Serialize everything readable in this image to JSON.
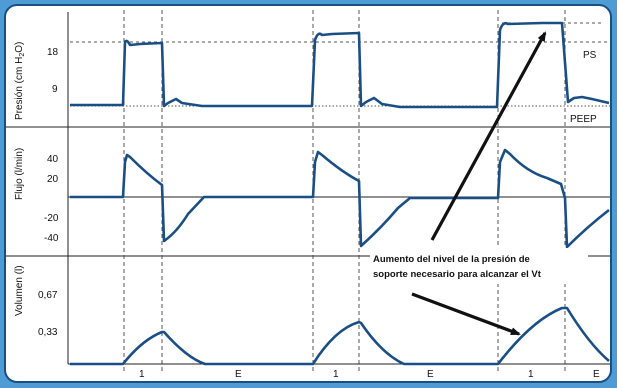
{
  "colors": {
    "background": "#4f9cd4",
    "frame_border": "#1a4f86",
    "curve": "#1a4f86",
    "grid": "#666666",
    "arrow": "#111111"
  },
  "panels": {
    "pressure": {
      "ylabel": "Presión (cm H",
      "ylabel_sub": "2",
      "ylabel_end": "O)",
      "ticks": [
        "18",
        "9"
      ]
    },
    "flow": {
      "ylabel": "Flujo (l/min)",
      "ticks": [
        "40",
        "20",
        "-20",
        "-40"
      ]
    },
    "volume": {
      "ylabel": "Volumen (l)",
      "ticks": [
        "0,67",
        "0,33"
      ]
    }
  },
  "labels": {
    "ps": "PS",
    "peep": "PEEP"
  },
  "phase_labels": [
    "1",
    "E",
    "1",
    "E",
    "1",
    "E"
  ],
  "annotation": {
    "line1": "Aumento del nivel de la presión de",
    "line2": "soporte necesario para alcanzar el Vt"
  },
  "chart_data": {
    "type": "line",
    "x_label": "",
    "series": [
      {
        "panel": "pressure",
        "units": "cm H2O",
        "breaths": [
          {
            "ps": 20
          },
          {
            "ps": 23
          },
          {
            "ps": 26
          }
        ],
        "peep": 5
      },
      {
        "panel": "flow",
        "units": "l/min",
        "breaths": [
          {
            "peak": 42
          },
          {
            "peak": 44
          },
          {
            "peak": 45
          }
        ],
        "expiratory_min": [
          -42,
          -45,
          -46
        ]
      },
      {
        "panel": "volume",
        "units": "l",
        "breaths": [
          {
            "vt": 0.31
          },
          {
            "vt": 0.4
          },
          {
            "vt": 0.52
          }
        ]
      }
    ]
  }
}
